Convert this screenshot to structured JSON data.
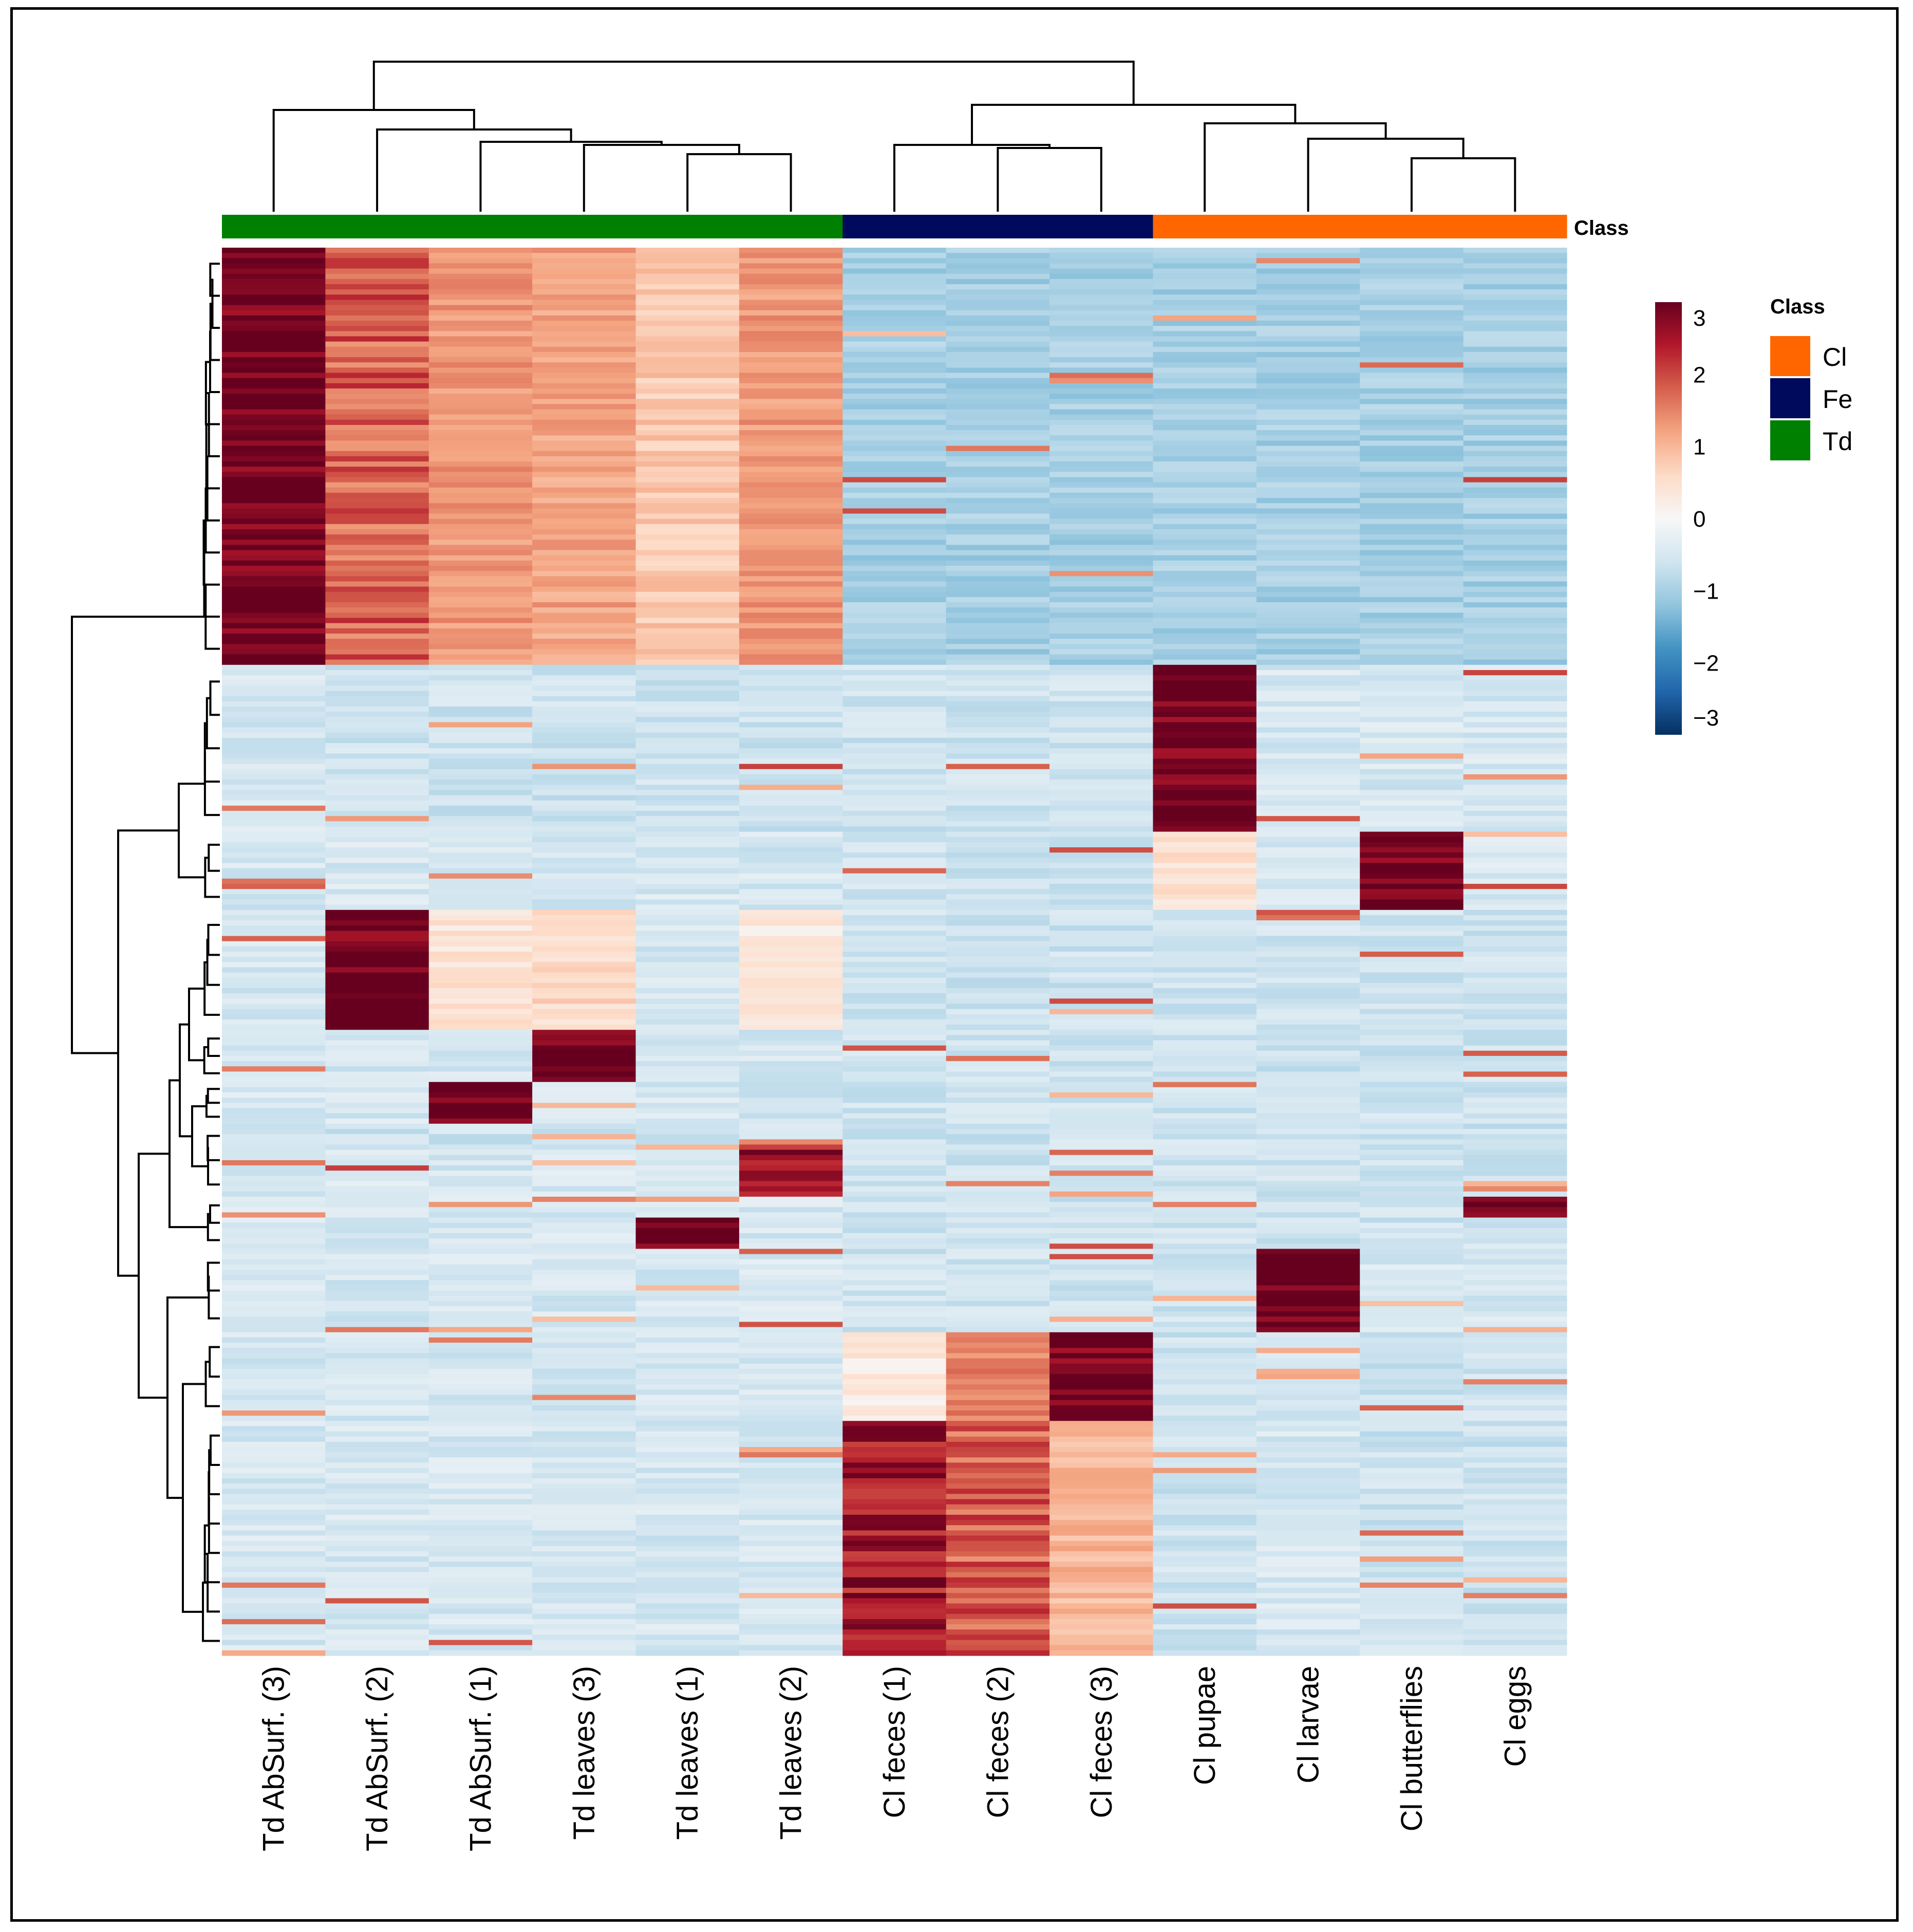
{
  "chart_data": {
    "type": "heatmap",
    "title": "",
    "row_count": 270,
    "columns": [
      {
        "label": "Td AbSurf. (3)",
        "class": "Td"
      },
      {
        "label": "Td AbSurf. (2)",
        "class": "Td"
      },
      {
        "label": "Td AbSurf. (1)",
        "class": "Td"
      },
      {
        "label": "Td leaves (3)",
        "class": "Td"
      },
      {
        "label": "Td leaves (1)",
        "class": "Td"
      },
      {
        "label": "Td leaves (2)",
        "class": "Td"
      },
      {
        "label": "Cl feces (1)",
        "class": "Fe"
      },
      {
        "label": "Cl feces (2)",
        "class": "Fe"
      },
      {
        "label": "Cl feces (3)",
        "class": "Fe"
      },
      {
        "label": "Cl pupae",
        "class": "Cl"
      },
      {
        "label": "Cl larvae",
        "class": "Cl"
      },
      {
        "label": "Cl butterflies",
        "class": "Cl"
      },
      {
        "label": "Cl eggs",
        "class": "Cl"
      }
    ],
    "blocks": [
      {
        "rows": [
          0,
          80
        ],
        "values": [
          3.0,
          1.8,
          1.3,
          1.2,
          0.8,
          1.3,
          -1.0,
          -1.0,
          -1.0,
          -1.0,
          -1.0,
          -1.0,
          -1.0
        ]
      },
      {
        "rows": [
          80,
          112
        ],
        "values": [
          -0.5,
          -0.6,
          -0.6,
          -0.6,
          -0.6,
          -0.6,
          -0.6,
          -0.6,
          -0.6,
          3.0,
          -0.5,
          -0.5,
          -0.5
        ]
      },
      {
        "rows": [
          112,
          127
        ],
        "values": [
          -0.5,
          -0.5,
          -0.5,
          -0.5,
          -0.5,
          -0.5,
          -0.6,
          -0.6,
          -0.6,
          0.5,
          -0.5,
          3.0,
          -0.5
        ]
      },
      {
        "rows": [
          127,
          150
        ],
        "values": [
          -0.5,
          3.0,
          0.4,
          0.6,
          -0.5,
          0.3,
          -0.6,
          -0.6,
          -0.6,
          -0.6,
          -0.6,
          -0.6,
          -0.6
        ]
      },
      {
        "rows": [
          150,
          160
        ],
        "values": [
          -0.5,
          -0.5,
          -0.5,
          3.0,
          -0.5,
          -0.5,
          -0.6,
          -0.6,
          -0.6,
          -0.6,
          -0.6,
          -0.6,
          -0.6
        ]
      },
      {
        "rows": [
          160,
          168
        ],
        "values": [
          -0.5,
          -0.5,
          3.0,
          -0.5,
          -0.5,
          -0.5,
          -0.6,
          -0.6,
          -0.6,
          -0.6,
          -0.6,
          -0.6,
          -0.6
        ]
      },
      {
        "rows": [
          172,
          182
        ],
        "values": [
          -0.5,
          -0.5,
          -0.5,
          -0.5,
          -0.5,
          2.5,
          -0.6,
          -0.6,
          -0.6,
          -0.6,
          -0.6,
          -0.6,
          -0.6
        ]
      },
      {
        "rows": [
          182,
          186
        ],
        "values": [
          -0.5,
          -0.5,
          -0.5,
          -0.5,
          -0.5,
          -0.5,
          -0.6,
          -0.6,
          -0.6,
          -0.6,
          -0.6,
          -0.6,
          3.0
        ]
      },
      {
        "rows": [
          186,
          192
        ],
        "values": [
          -0.5,
          -0.5,
          -0.5,
          -0.5,
          3.0,
          -0.5,
          -0.6,
          -0.6,
          -0.6,
          -0.6,
          -0.6,
          -0.6,
          -0.6
        ]
      },
      {
        "rows": [
          192,
          208
        ],
        "values": [
          -0.5,
          -0.5,
          -0.5,
          -0.5,
          -0.5,
          -0.5,
          -0.6,
          -0.6,
          -0.6,
          -0.6,
          3.0,
          -0.5,
          -0.5
        ]
      },
      {
        "rows": [
          208,
          225
        ],
        "values": [
          -0.5,
          -0.5,
          -0.5,
          -0.5,
          -0.5,
          -0.5,
          0.3,
          1.5,
          3.0,
          -0.6,
          -0.6,
          -0.6,
          -0.6
        ]
      },
      {
        "rows": [
          225,
          270
        ],
        "values": [
          -0.5,
          -0.5,
          -0.5,
          -0.5,
          -0.5,
          -0.5,
          2.5,
          1.8,
          1.0,
          -0.6,
          -0.5,
          -0.6,
          -0.6
        ]
      }
    ],
    "class_colors": {
      "Cl": "#ff6600",
      "Fe": "#000a5c",
      "Td": "#008000"
    },
    "class_annotation_label": "Class",
    "colorbar": {
      "min": -3,
      "max": 3,
      "ticks": [
        3,
        2,
        1,
        0,
        -1,
        -2,
        -3
      ],
      "tick_labels": [
        "3",
        "2",
        "1",
        "0",
        "−1",
        "−2",
        "−3"
      ],
      "colors": [
        "#053061",
        "#2166ac",
        "#4393c3",
        "#92c5de",
        "#d1e5f0",
        "#f7f7f7",
        "#fddbc7",
        "#f4a582",
        "#d6604d",
        "#b2182b",
        "#67001f"
      ]
    },
    "legend": {
      "title": "Class",
      "entries": [
        {
          "label": "Cl",
          "color": "#ff6600"
        },
        {
          "label": "Fe",
          "color": "#000a5c"
        },
        {
          "label": "Td",
          "color": "#008000"
        }
      ],
      "placement": "right"
    }
  }
}
